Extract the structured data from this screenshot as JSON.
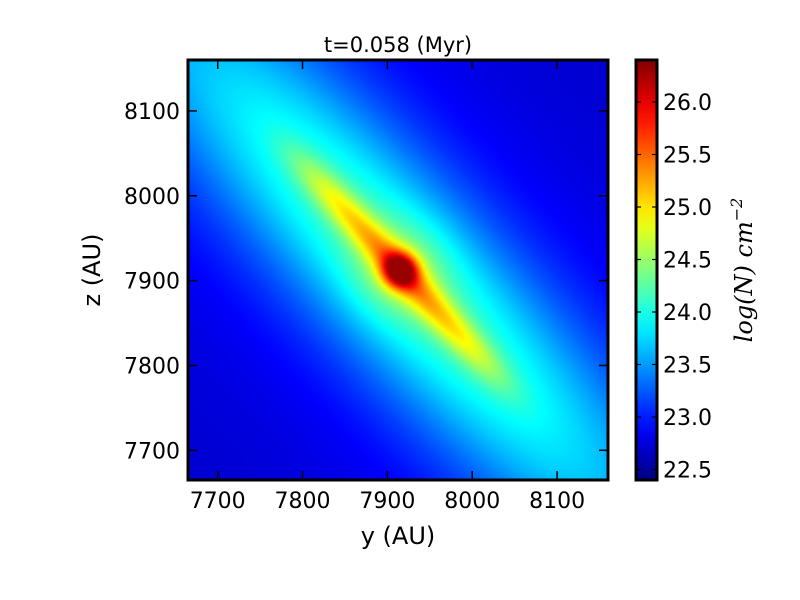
{
  "chart_data": {
    "type": "heatmap",
    "title": "t=0.058 (Myr)",
    "xlabel": "y (AU)",
    "ylabel": "z (AU)",
    "xlim": [
      7665,
      8160
    ],
    "ylim": [
      7665,
      8160
    ],
    "xticks": [
      7700,
      7800,
      7900,
      8000,
      8100
    ],
    "yticks": [
      7700,
      7800,
      7900,
      8000,
      8100
    ],
    "xtick_labels": [
      "7700",
      "7800",
      "7900",
      "8000",
      "8100"
    ],
    "ytick_labels": [
      "7700",
      "7800",
      "7900",
      "8000",
      "8100"
    ],
    "colormap": "jet",
    "colorbar": {
      "label_base": "log(N) cm",
      "label_exponent": "−2",
      "range": [
        22.4,
        26.4
      ],
      "ticks": [
        22.5,
        23.0,
        23.5,
        24.0,
        24.5,
        25.0,
        25.5,
        26.0
      ],
      "tick_labels": [
        "22.5",
        "23.0",
        "23.5",
        "24.0",
        "24.5",
        "25.0",
        "25.5",
        "26.0"
      ]
    },
    "features": {
      "center": [
        7915,
        7912
      ],
      "peak_log_n": 26.3,
      "filament_start": [
        7795,
        8040
      ],
      "filament_end": [
        8030,
        7785
      ],
      "background_log_n": 22.7
    },
    "grid": false
  }
}
